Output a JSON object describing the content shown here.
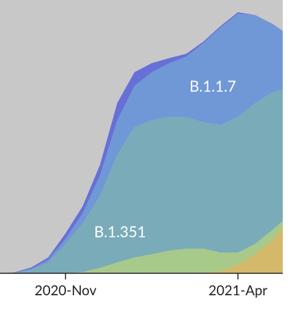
{
  "chart_data": {
    "type": "area",
    "stacked": true,
    "background": "#c8c8c8",
    "x": [
      9.1,
      9.5,
      10,
      10.5,
      11,
      11.5,
      12,
      12.5,
      13,
      13.5,
      14,
      14.5,
      15,
      15.5,
      16,
      16.5,
      17,
      17.3
    ],
    "xlim": [
      9.1,
      17.3
    ],
    "xticks": [
      {
        "value": 11,
        "label": "2020-Nov"
      },
      {
        "value": 16,
        "label": "2021-Apr"
      }
    ],
    "ylim": [
      0,
      100
    ],
    "series": [
      {
        "color": "#d5b96a",
        "values": [
          0,
          0,
          0,
          0,
          0,
          0,
          0,
          0,
          0,
          0,
          0,
          0,
          0,
          0.8,
          3.3,
          7.0,
          12.1,
          17.1
        ]
      },
      {
        "color": "#a7c98a",
        "values": [
          0,
          0,
          0,
          0,
          0,
          0.5,
          2.0,
          4.0,
          5.8,
          7.0,
          8.3,
          9.0,
          9.0,
          6.8,
          4.3,
          3.8,
          3.8,
          2.0
        ]
      },
      {
        "name": "B.1.351",
        "color": "#7aabb9",
        "values": [
          0,
          0,
          1.3,
          4.0,
          10.8,
          17.8,
          26.4,
          39.4,
          47.7,
          49.0,
          49.0,
          48.2,
          46.2,
          46.7,
          49.7,
          51.5,
          50.3,
          48.2
        ]
      },
      {
        "name": "B.1.1.7",
        "color": "#7097d6",
        "values": [
          0,
          0.3,
          0.3,
          1.0,
          1.8,
          3.8,
          7.5,
          12.6,
          15.1,
          17.6,
          19.6,
          22.1,
          29.1,
          35.7,
          37.7,
          32.2,
          25.1,
          21.4
        ]
      },
      {
        "color": "#6670d6",
        "values": [
          0,
          0,
          0.5,
          0.8,
          2.0,
          2.5,
          3.8,
          6.3,
          5.0,
          3.3,
          1.8,
          1.0,
          0.5,
          0.5,
          0.5,
          0,
          0,
          0
        ]
      }
    ]
  }
}
